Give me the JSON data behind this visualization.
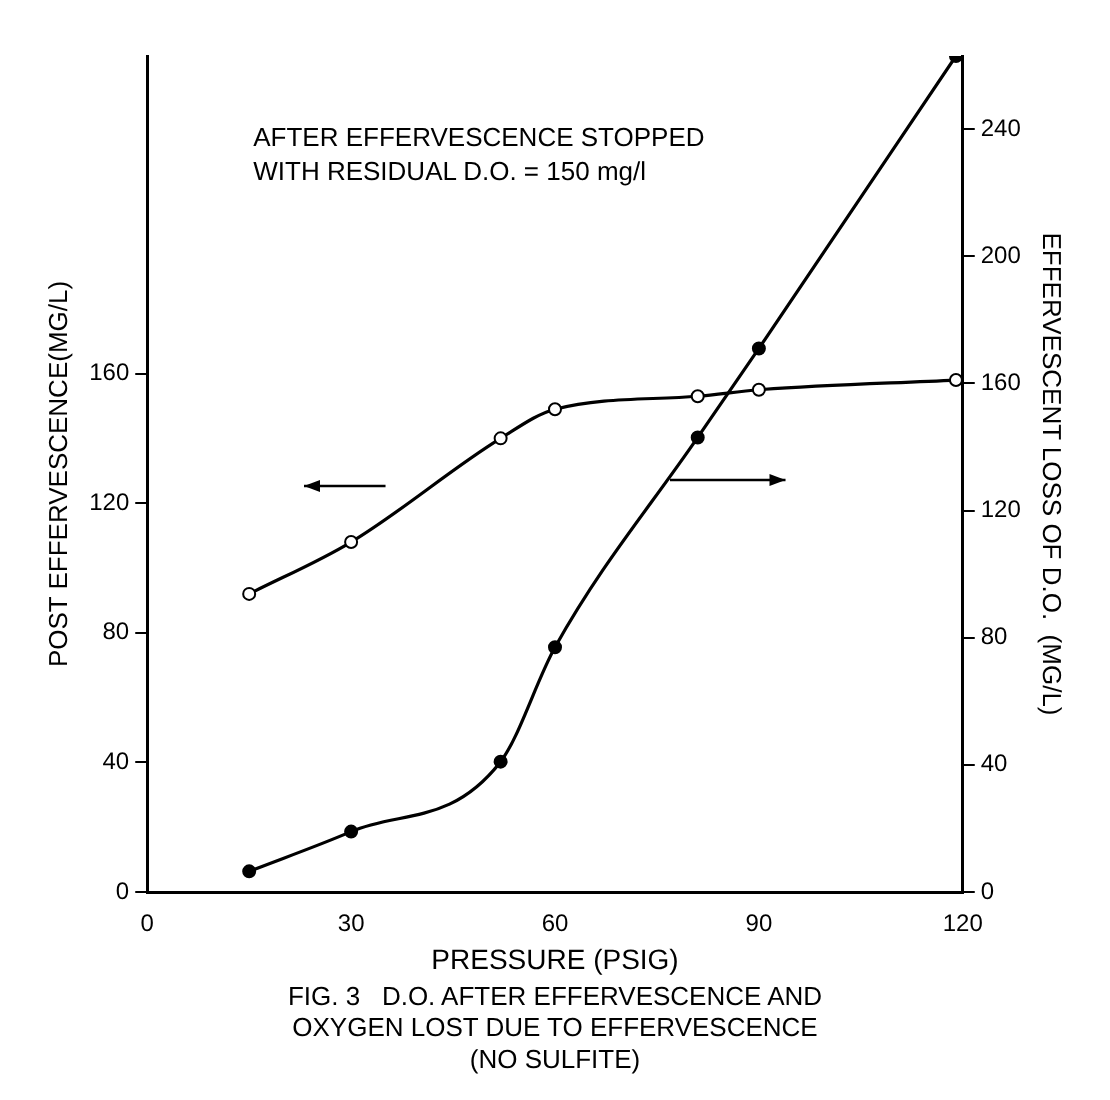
{
  "chart_data": {
    "type": "line",
    "title": "FIG. 3   D.O. AFTER EFFERVESCENCE AND\nOXYGEN LOST DUE TO EFFERVESCENCE\n(NO SULFITE)",
    "xlabel": "PRESSURE (PSIG)",
    "ylabel": "POST EFFERVESCENCE(MG/L)",
    "y2label": "EFFERVESCENT LOSS OF D.O.  (MG/L)",
    "annotations": [
      "AFTER EFFERVESCENCE STOPPED\nWITH RESIDUAL D.O. = 150 mg/l"
    ],
    "series": [
      {
        "color": "#000000",
        "x": [
          15,
          30,
          52,
          60,
          81,
          90,
          119
        ],
        "values": [
          92,
          108,
          140,
          149,
          153,
          155,
          158
        ]
      },
      {
        "color": "#000000",
        "axis": "y2",
        "x": [
          15,
          30,
          52,
          60,
          81,
          90,
          119
        ],
        "values": [
          6.5,
          19,
          41,
          77,
          143,
          171,
          263
        ]
      }
    ],
    "xlim": [
      0,
      120
    ],
    "xticks": [
      0,
      30,
      60,
      90,
      120
    ],
    "ylim": [
      0,
      258
    ],
    "yticks": [
      0,
      40,
      80,
      120,
      160
    ],
    "y2lim": [
      0,
      263
    ],
    "y2ticks": [
      0,
      40,
      80,
      120,
      160,
      200,
      240
    ],
    "grid": false,
    "legend": false,
    "marker": "circle",
    "line_style": "solid"
  }
}
